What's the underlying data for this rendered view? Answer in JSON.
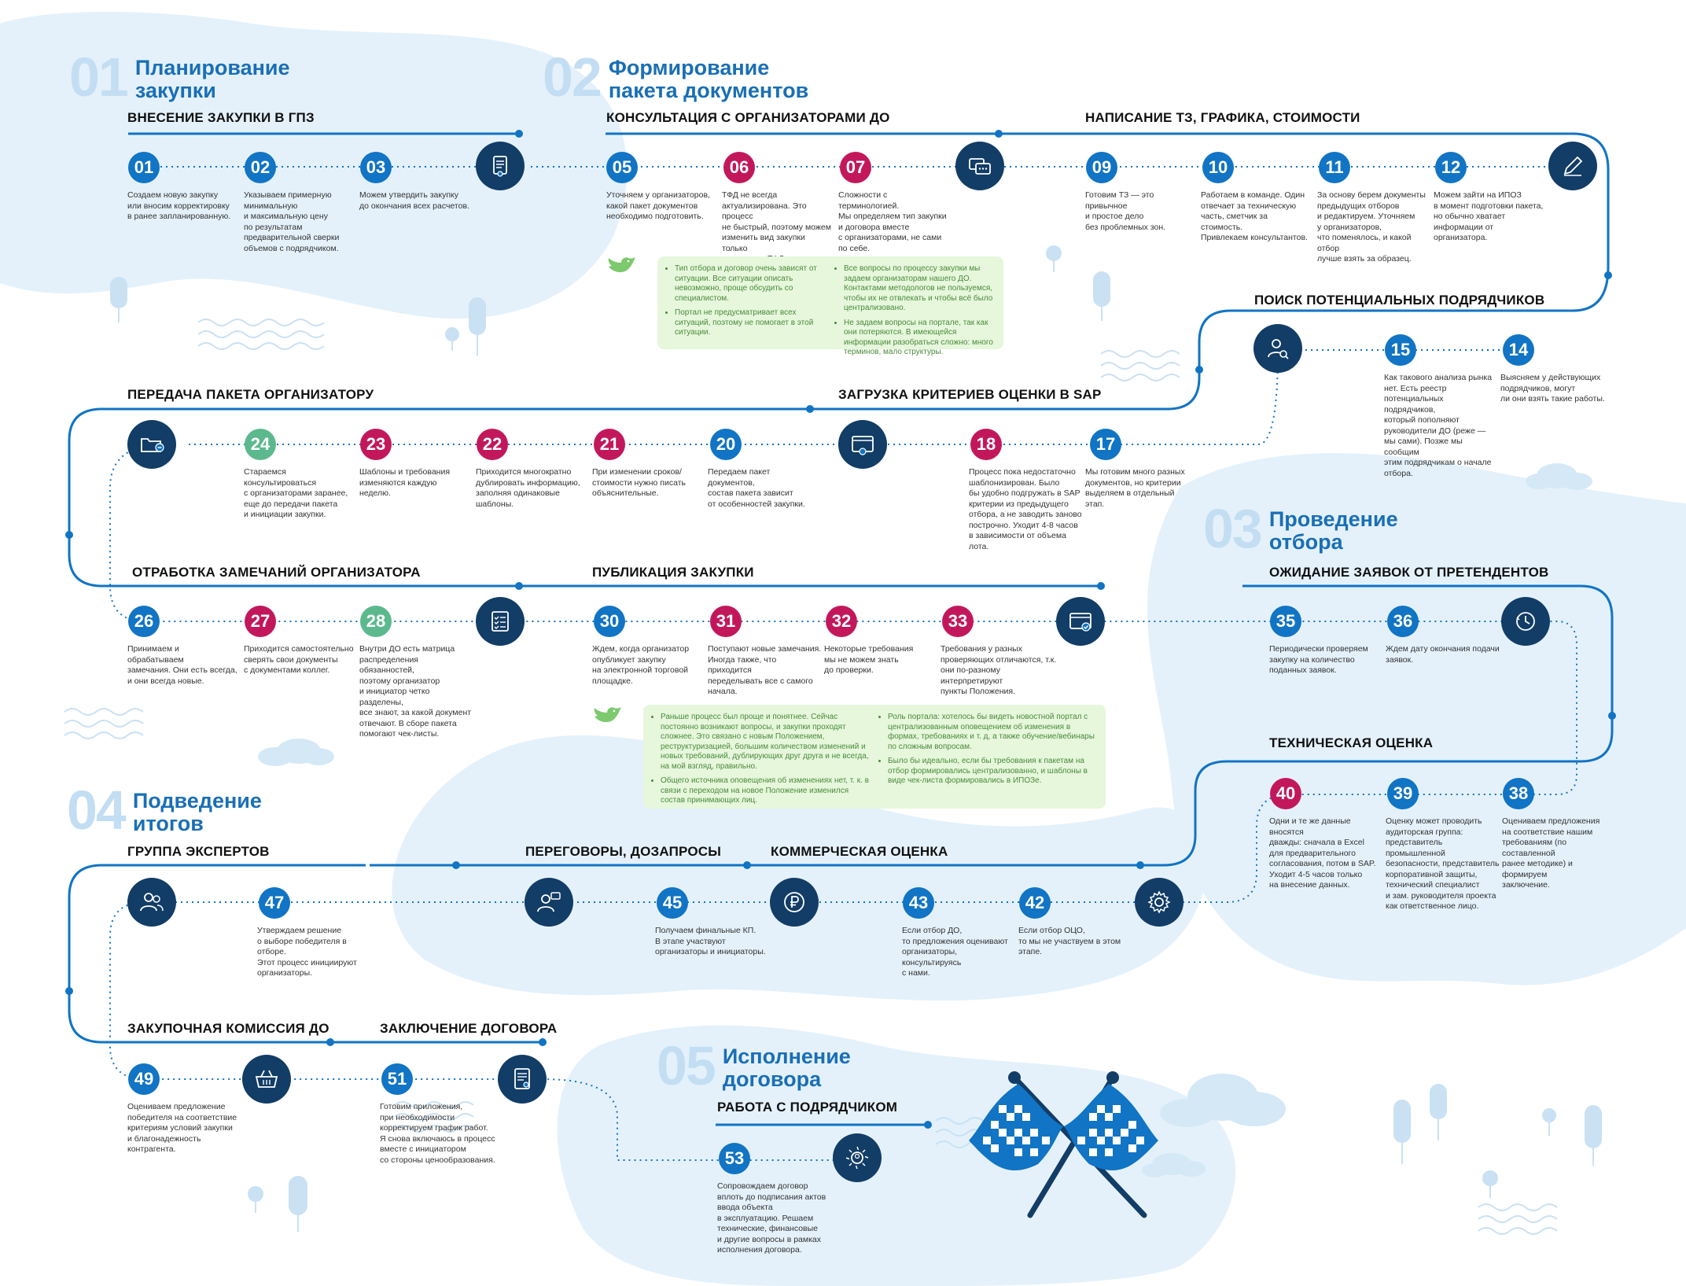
{
  "phases": [
    {
      "num": "01",
      "title": "Планирование\nзакупки"
    },
    {
      "num": "02",
      "title": "Формирование\nпакета документов"
    },
    {
      "num": "03",
      "title": "Проведение\nотбора"
    },
    {
      "num": "04",
      "title": "Подведение\nитогов"
    },
    {
      "num": "05",
      "title": "Исполнение\nдоговора"
    }
  ],
  "sections": {
    "gpz": "ВНЕСЕНИЕ ЗАКУПКИ В ГПЗ",
    "consult": "КОНСУЛЬТАЦИЯ С ОРГАНИЗАТОРАМИ ДО",
    "tz": "НАПИСАНИЕ ТЗ, ГРАФИКА, СТОИМОСТИ",
    "search": "ПОИСК ПОТЕНЦИАЛЬНЫХ ПОДРЯДЧИКОВ",
    "transfer": "ПЕРЕДАЧА ПАКЕТА ОРГАНИЗАТОРУ",
    "sap": "ЗАГРУЗКА КРИТЕРИЕВ ОЦЕНКИ В SAP",
    "remarks": "ОТРАБОТКА ЗАМЕЧАНИЙ ОРГАНИЗАТОРА",
    "publish": "ПУБЛИКАЦИЯ ЗАКУПКИ",
    "waiting": "ОЖИДАНИЕ ЗАЯВОК ОТ ПРЕТЕНДЕНТОВ",
    "tech": "ТЕХНИЧЕСКАЯ ОЦЕНКА",
    "experts": "ГРУППА ЭКСПЕРТОВ",
    "negot": "ПЕРЕГОВОРЫ, ДОЗАПРОСЫ",
    "commerce": "КОММЕРЧЕСКАЯ ОЦЕНКА",
    "commission": "ЗАКУПОЧНАЯ КОМИССИЯ ДО",
    "contract": "ЗАКЛЮЧЕНИЕ ДОГОВОРА",
    "work": "РАБОТА С ПОДРЯДЧИКОМ"
  },
  "steps": {
    "s01": {
      "n": "01",
      "text": "Создаем новую закупку\nили вносим корректировку\nв ранее запланированную."
    },
    "s02": {
      "n": "02",
      "text": "Указываем примерную\nминимальную\nи максимальную цену\nпо результатам\nпредварительной сверки\nобъемов с подрядчиком."
    },
    "s03": {
      "n": "03",
      "text": "Можем утвердить закупку\nдо окончания всех расчетов."
    },
    "s05": {
      "n": "05",
      "text": "Уточняем у организаторов,\nкакой пакет документов\nнеобходимо подготовить."
    },
    "s06": {
      "n": "06",
      "text": "ТФД не всегда\nактуализирована. Это процесс\nне быстрый, поэтому можем\nизменить вид закупки только\nпотому, что ТФД долго ждать."
    },
    "s07": {
      "n": "07",
      "text": "Сложности с терминологией.\nМы определяем тип закупки\nи договора вместе\nс организаторами, не сами\nпо себе."
    },
    "s09": {
      "n": "09",
      "text": "Готовим ТЗ — это привычное\nи простое дело\nбез проблемных зон."
    },
    "s10": {
      "n": "10",
      "text": "Работаем в команде. Один\nотвечает за техническую\nчасть, сметчик за стоимость.\nПривлекаем консультантов."
    },
    "s11": {
      "n": "11",
      "text": "За основу берем документы\nпредыдущих отборов\nи редактируем. Уточняем\nу организаторов,\nчто поменялось, и какой отбор\nлучше взять за образец."
    },
    "s12": {
      "n": "12",
      "text": "Можем зайти на ИПОЗ\nв момент подготовки пакета,\nно обычно хватает\nинформации от организатора."
    },
    "s14": {
      "n": "14",
      "text": "Выясняем у действующих\nподрядчиков, могут\nли они взять такие работы."
    },
    "s15": {
      "n": "15",
      "text": "Как такового анализа рынка\nнет. Есть реестр\nпотенциальных подрядчиков,\nкоторый пополняют\nруководители ДО (реже —\nмы сами). Позже мы сообщим\nэтим подрядчикам о начале\nотбора."
    },
    "s17": {
      "n": "17",
      "text": "Мы готовим много разных\nдокументов, но критерии\nвыделяем в отдельный этап."
    },
    "s18": {
      "n": "18",
      "text": "Процесс пока недостаточно\nшаблонизирован. Было\nбы удобно подгружать в SAP\nкритерии из предыдущего\nотбора, а не заводить заново\nпострочно. Уходит 4-8 часов\nв зависимости от объема лота."
    },
    "s20": {
      "n": "20",
      "text": "Передаем пакет документов,\nсостав пакета зависит\nот особенностей закупки."
    },
    "s21": {
      "n": "21",
      "text": "При изменении сроков/\nстоимости нужно писать\nобъяснительные."
    },
    "s22": {
      "n": "22",
      "text": "Приходится многократно\nдублировать информацию,\nзаполняя одинаковые\nшаблоны."
    },
    "s23": {
      "n": "23",
      "text": "Шаблоны и требования\nизменяются каждую неделю."
    },
    "s24": {
      "n": "24",
      "text": "Стараемся консультироваться\nс организаторами заранее,\nеще до передачи пакета\nи инициации закупки."
    },
    "s26": {
      "n": "26",
      "text": "Принимаем и обрабатываем\nзамечания. Они есть всегда,\nи они всегда новые."
    },
    "s27": {
      "n": "27",
      "text": "Приходится самостоятельно\nсверять свои документы\nс документами коллег."
    },
    "s28": {
      "n": "28",
      "text": "Внутри ДО есть матрица\nраспределения обязанностей,\nпоэтому организатор\nи инициатор четко разделены,\nвсе знают, за какой документ\nотвечают. В сборе пакета\nпомогают чек-листы."
    },
    "s30": {
      "n": "30",
      "text": "Ждем, когда организатор\nопубликует закупку\nна электронной торговой\nплощадке."
    },
    "s31": {
      "n": "31",
      "text": "Поступают новые замечания.\nИногда также, что приходится\nпеределывать все с самого\nначала."
    },
    "s32": {
      "n": "32",
      "text": "Некоторые требования\nмы не можем знать\nдо проверки."
    },
    "s33": {
      "n": "33",
      "text": "Требования у разных\nпроверяющих отличаются, т.к.\nони по-разному интерпретируют\nпункты Положения."
    },
    "s35": {
      "n": "35",
      "text": "Периодически проверяем\nзакупку на количество\nподанных заявок."
    },
    "s36": {
      "n": "36",
      "text": "Ждем дату окончания подачи\nзаявок."
    },
    "s38": {
      "n": "38",
      "text": "Оцениваем предложения\nна соответствие нашим\nтребованиям (по составленной\nранее методике) и формируем\nзаключение."
    },
    "s39": {
      "n": "39",
      "text": "Оценку может проводить\nаудиторская группа:\nпредставитель промышленной\nбезопасности, представитель\nкорпоративной защиты,\nтехнический специалист\nи зам. руководителя проекта\nкак ответственное лицо."
    },
    "s40": {
      "n": "40",
      "text": "Одни и те же данные вносятся\nдважды: сначала в Excel\nдля предварительного\nсогласования, потом в SAP.\nУходит 4-5 часов только\nна внесение данных."
    },
    "s42": {
      "n": "42",
      "text": "Если отбор ОЦО,\nто мы не участвуем в этом\nэтапе."
    },
    "s43": {
      "n": "43",
      "text": "Если отбор ДО,\nто предложения оценивают\nорганизаторы, консультируясь\nс нами."
    },
    "s45": {
      "n": "45",
      "text": "Получаем финальные КП.\nВ этапе участвуют\nорганизаторы и инициаторы."
    },
    "s47": {
      "n": "47",
      "text": "Утверждаем решение\nо выборе победителя в отборе.\nЭтот процесс инициируют\nорганизаторы."
    },
    "s49": {
      "n": "49",
      "text": "Оцениваем предложение\nпобедителя на соответствие\nкритериям условий закупки\nи благонадежность\nконтрагента."
    },
    "s51": {
      "n": "51",
      "text": "Готовим приложения,\nпри необходимости\nкорректируем график работ.\nЯ снова включаюсь в процесс\nвместе с инициатором\nсо стороны ценообразования."
    },
    "s53": {
      "n": "53",
      "text": "Сопровождаем договор\nвплоть до подписания актов\nввода объекта\nв эксплуатацию. Решаем\nтехнические, финансовые\nи другие вопросы в рамках\nисполнения договора."
    }
  },
  "notes": {
    "n1": {
      "left": [
        "Тип отбора и договор очень зависят от ситуации. Все ситуации описать невозможно, проще обсудить со специалистом.",
        "Портал не предусматривает всех ситуаций, поэтому не помогает в этой ситуации."
      ],
      "right": [
        "Все вопросы по процессу закупки мы задаем организаторам нашего ДО. Контактами методологов не пользуемся, чтобы их не отвлекать и чтобы всё было централизовано.",
        "Не задаем вопросы на портале, так как они потеряются. В имеющейся информации разобраться сложно: много терминов, мало структуры."
      ]
    },
    "n2": {
      "left": [
        "Раньше процесс был проще и понятнее. Сейчас постоянно возникают вопросы, и закупки проходят сложнее. Это связано с новым Положением, реструктуризацией, большим количеством изменений и новых требований, дублирующих друг друга и не всегда, на мой взгляд, правильно.",
        "Общего источника оповещения об изменениях нет, т. к. в связи с переходом на новое Положение изменился состав принимающих лиц."
      ],
      "right": [
        "Роль портала: хотелось бы видеть новостной портал с централизованным оповещением об изменения в формах, требованиях и т. д, а также обучение/вебинары по сложным вопросам.",
        "Было бы идеально, если бы требования к пакетам на отбор формировались централизованно, и шаблоны в виде чек-листа формировались в ИПОЗе."
      ]
    }
  },
  "icons": [
    "document-icon",
    "chat-icon",
    "pen-icon",
    "search-person-icon",
    "folder-send-icon",
    "browser-upload-icon",
    "checklist-icon",
    "browser-check-icon",
    "clock-icon",
    "gear-icon",
    "ruble-icon",
    "negotiation-person-icon",
    "experts-icon",
    "basket-icon",
    "contract-icon",
    "handshake-icon",
    "finish-flags-icon",
    "bird-icon"
  ],
  "colors": {
    "line": "#1174c4",
    "blob": "#e4f1fb",
    "step_blue": "#1174c4",
    "step_red": "#c2185b",
    "step_green": "#5cb98e",
    "icon_bg": "#123d66",
    "title": "#1a6fb5",
    "note_bg": "#e6f7dc"
  }
}
